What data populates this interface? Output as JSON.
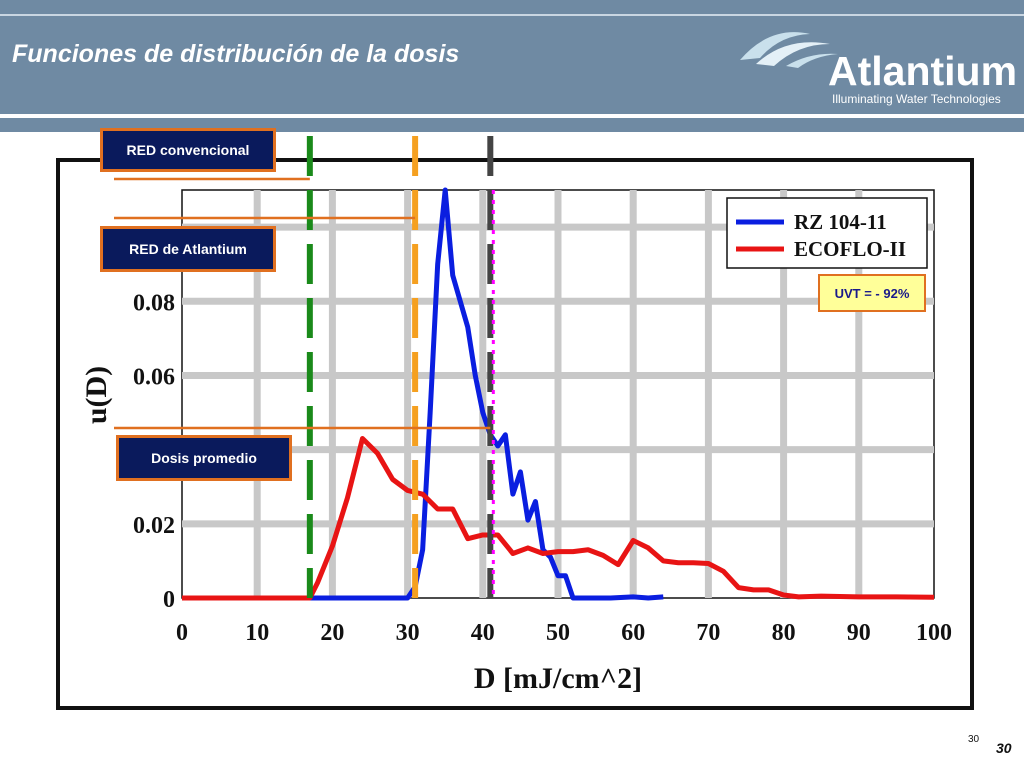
{
  "slide": {
    "title": "Funciones de distribución de la dosis",
    "logo": {
      "name": "Atlantium",
      "tagline": "Illuminating Water Technologies"
    },
    "page_number_small": "30",
    "page_number": "30"
  },
  "callouts": {
    "red_conv": "RED convencional",
    "red_atl": "RED de Atlantium",
    "dosis_prom": "Dosis promedio",
    "uvt": "UVT = - 92%"
  },
  "colors": {
    "header": "#6f8aa3",
    "callout_bg": "#0a1a5c",
    "callout_border": "#e07020",
    "rz": "#0a1ee0",
    "ecoflo": "#e81414"
  },
  "chart_data": {
    "type": "line",
    "xlabel": "D [mJ/cm^2]",
    "ylabel": "u(D)",
    "xlim": [
      0,
      100
    ],
    "ylim": [
      0,
      0.11
    ],
    "x_ticks": [
      "0",
      "10",
      "20",
      "30",
      "40",
      "50",
      "60",
      "70",
      "80",
      "90",
      "100"
    ],
    "y_ticks": [
      {
        "value": 0,
        "label": "0"
      },
      {
        "value": 0.02,
        "label": "0.02"
      },
      {
        "value": 0.06,
        "label": "0.06"
      },
      {
        "value": 0.08,
        "label": "0.08"
      }
    ],
    "grid": true,
    "legend": "top-right",
    "series": [
      {
        "name": "RZ 104-11",
        "color": "#0a1ee0",
        "x": [
          0,
          30,
          31,
          32,
          33,
          34,
          35,
          36,
          38,
          39,
          40,
          41,
          42,
          43,
          44,
          45,
          46,
          47,
          48,
          49,
          50,
          51,
          52,
          53,
          54,
          55,
          56,
          57,
          60,
          62,
          64
        ],
        "y": [
          0,
          0,
          0.003,
          0.013,
          0.05,
          0.09,
          0.11,
          0.087,
          0.073,
          0.06,
          0.05,
          0.044,
          0.041,
          0.044,
          0.028,
          0.034,
          0.021,
          0.026,
          0.013,
          0.011,
          0.006,
          0.006,
          0,
          0,
          0,
          0,
          0,
          0,
          0.0003,
          0,
          0.0003
        ]
      },
      {
        "name": "ECOFLO-II",
        "color": "#e81414",
        "x": [
          0,
          17,
          18,
          20,
          22,
          24,
          26,
          28,
          30,
          32,
          34,
          36,
          38,
          40,
          42,
          44,
          46,
          48,
          50,
          52,
          54,
          56,
          58,
          60,
          62,
          64,
          66,
          68,
          70,
          72,
          74,
          76,
          78,
          80,
          82,
          85,
          90,
          95,
          100
        ],
        "y": [
          0,
          0,
          0.004,
          0.014,
          0.027,
          0.043,
          0.039,
          0.032,
          0.029,
          0.028,
          0.024,
          0.024,
          0.016,
          0.017,
          0.017,
          0.012,
          0.0135,
          0.012,
          0.0125,
          0.0125,
          0.013,
          0.0115,
          0.009,
          0.0155,
          0.0135,
          0.01,
          0.0095,
          0.0095,
          0.0093,
          0.0072,
          0.0028,
          0.0022,
          0.0022,
          0.0008,
          0.0003,
          0.0005,
          0.0003,
          0.0003,
          0.0002
        ]
      }
    ],
    "markers": [
      {
        "label": "RED convencional",
        "x": 17,
        "color": "#1a8a1a"
      },
      {
        "label": "RED de Atlantium",
        "x": 31,
        "color": "#f5a020"
      },
      {
        "label": "Dosis promedio",
        "x": 41,
        "color": "#444444"
      }
    ]
  }
}
